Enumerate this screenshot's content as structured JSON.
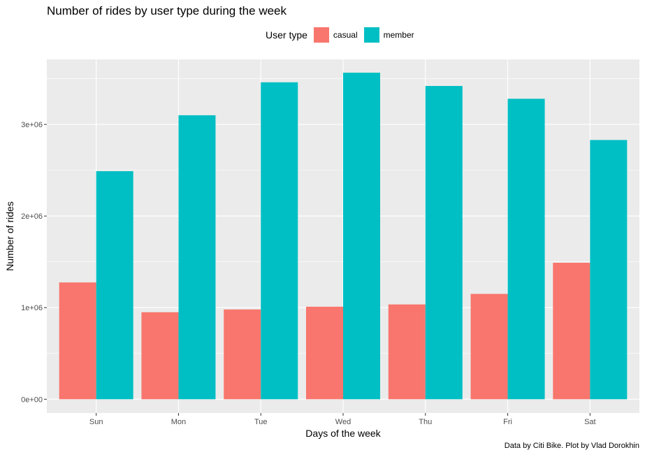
{
  "chart_data": {
    "type": "bar",
    "title": "Number of rides by user type during the week",
    "xlabel": "Days of the week",
    "ylabel": "Number of rides",
    "caption": "Data by Citi Bike. Plot by Vlad Dorokhin",
    "categories": [
      "Sun",
      "Mon",
      "Tue",
      "Wed",
      "Thu",
      "Fri",
      "Sat"
    ],
    "legend": {
      "title": "User type",
      "position": "top"
    },
    "series": [
      {
        "name": "casual",
        "color": "#F8766D",
        "values": [
          1275000,
          950000,
          980000,
          1010000,
          1035000,
          1150000,
          1490000
        ]
      },
      {
        "name": "member",
        "color": "#00BFC4",
        "values": [
          2490000,
          3100000,
          3460000,
          3565000,
          3420000,
          3280000,
          2830000
        ]
      }
    ],
    "ylim": [
      -150000,
      3710000
    ],
    "yticks": [
      0,
      1000000,
      2000000,
      3000000
    ],
    "ytick_labels": [
      "0e+00",
      "1e+06",
      "2e+06",
      "3e+06"
    ],
    "grid": true,
    "panel_background": "#EBEBEB",
    "grid_color": "#FFFFFF"
  }
}
